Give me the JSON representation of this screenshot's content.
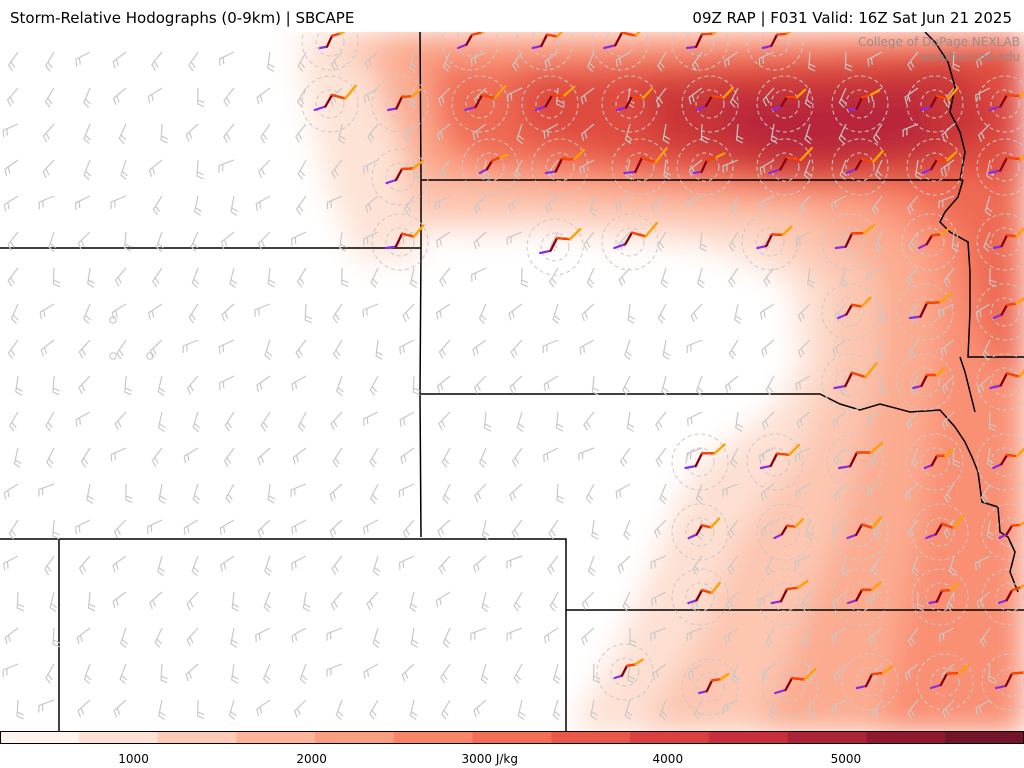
{
  "header": {
    "title": "Storm-Relative Hodographs (0-9km) | SBCAPE",
    "run_info": "09Z RAP | F031 Valid: 16Z Sat Jun 21 2025"
  },
  "watermark": {
    "line1": "College of DuPage NEXLAB",
    "line2": "weather.cod.edu"
  },
  "colorbar": {
    "unit": "J/kg",
    "range": [
      250,
      6000
    ],
    "ticks": [
      "1000",
      "2000",
      "3000 J/kg",
      "4000",
      "5000"
    ],
    "tick_values": [
      1000,
      2000,
      3000,
      4000,
      5000
    ],
    "colors": [
      "#fff3ee",
      "#fee1d5",
      "#fdcbb7",
      "#fcb49a",
      "#fb9d80",
      "#f98668",
      "#f26e55",
      "#e85747",
      "#d9403f",
      "#c62f3b",
      "#ab2336",
      "#8f1a2f",
      "#741429"
    ]
  },
  "hodograph_colors": {
    "layer_0_3km": "#8a2be2",
    "layer_3_6km": "#8b0000",
    "layer_6_9km": "#ff4500",
    "layer_top": "#ffa500"
  },
  "barb_color": "#c8c8c8"
}
